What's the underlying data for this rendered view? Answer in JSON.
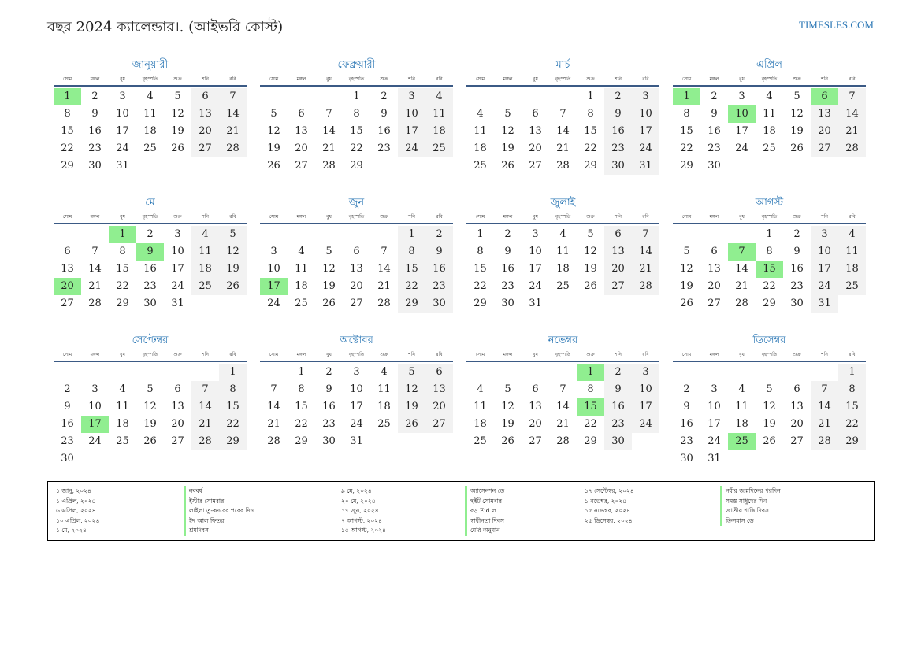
{
  "header": {
    "title": "বছর 2024 ক্যালেন্ডার।. (আইভরি কোস্ট)",
    "site": "TIMESLES.COM"
  },
  "weekday_labels": [
    "সোম",
    "মঙ্গল",
    "বুধ",
    "বৃহস্পতি",
    "শুক্র",
    "শনি",
    "রবি"
  ],
  "colors": {
    "accent": "#2b77b5",
    "holiday": "#90ee90",
    "weekend": "#f2f2f2",
    "rule": "#3b5a85"
  },
  "months": [
    {
      "name": "জানুয়ারী",
      "offset": 0,
      "days": 31,
      "holidays": [
        1
      ]
    },
    {
      "name": "ফেব্রুয়ারী",
      "offset": 3,
      "days": 29,
      "holidays": []
    },
    {
      "name": "মার্চ",
      "offset": 4,
      "days": 31,
      "holidays": []
    },
    {
      "name": "এপ্রিল",
      "offset": 0,
      "days": 30,
      "holidays": [
        1,
        6,
        10
      ]
    },
    {
      "name": "মে",
      "offset": 2,
      "days": 31,
      "holidays": [
        1,
        9,
        20
      ]
    },
    {
      "name": "জুন",
      "offset": 5,
      "days": 30,
      "holidays": [
        17
      ]
    },
    {
      "name": "জুলাই",
      "offset": 0,
      "days": 31,
      "holidays": []
    },
    {
      "name": "আগস্ট",
      "offset": 3,
      "days": 31,
      "holidays": [
        7,
        15
      ]
    },
    {
      "name": "সেপ্টেম্বর",
      "offset": 6,
      "days": 30,
      "holidays": [
        17
      ]
    },
    {
      "name": "অক্টোবর",
      "offset": 1,
      "days": 31,
      "holidays": []
    },
    {
      "name": "নভেম্বর",
      "offset": 4,
      "days": 30,
      "holidays": [
        1,
        15
      ]
    },
    {
      "name": "ডিসেম্বর",
      "offset": 6,
      "days": 31,
      "holidays": [
        25
      ]
    }
  ],
  "holiday_columns": [
    {
      "dates": [
        "১ জানু, ২০২৪",
        "১ এপ্রিল, ২০২৪",
        "৬ এপ্রিল, ২০২৪",
        "১০ এপ্রিল, ২০২৪",
        "১ মে, ২০২৪"
      ],
      "names": [
        "নববর্ষ",
        "ইস্টার সোমবার",
        "লাইলা তু-কদরের পরের দিন",
        "ইদ আল ফিতর",
        "শ্রমদিবস"
      ]
    },
    {
      "dates": [
        "৯ মে, ২০২৪",
        "২০ মে, ২০২৪",
        "১৭ জুন, ২০২৪",
        "৭ আগস্ট, ২০২৪",
        "১৫ আগস্ট, ২০২৪"
      ],
      "names": [
        "অ্যাসেনশন ডে",
        "হুইট সোমবার",
        "বড় Eid ল",
        "স্বাধীনতা দিবস",
        "মেরি অনুমান"
      ]
    },
    {
      "dates": [
        "১৭ সেপ্টেম্বর, ২০২৪",
        "১ নভেম্বর, ২০২৪",
        "১৫ নভেম্বর, ২০২৪",
        "২৫ ডিসেম্বর, ২০২৪"
      ],
      "names": [
        "নবীর জন্মদিনের পরদিন",
        "সমস্ত সাধুদের দিন",
        "জাতীয় শান্তি দিবস",
        "ক্রিসমাস ডে"
      ]
    }
  ]
}
